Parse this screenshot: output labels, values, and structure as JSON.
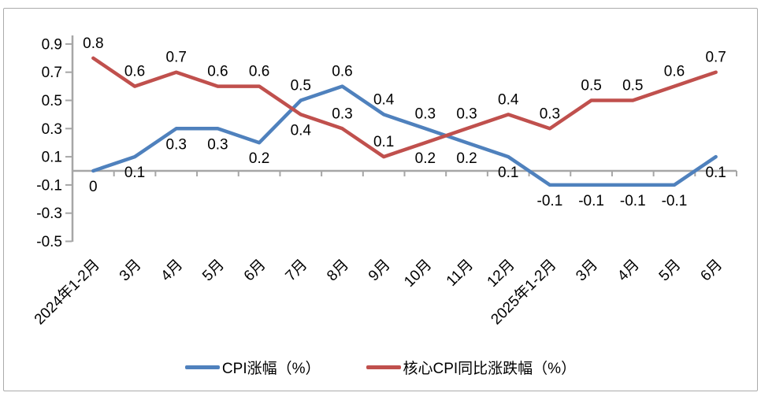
{
  "chart_data": {
    "type": "line",
    "title": "",
    "categories": [
      "2024年1-2月",
      "3月",
      "4月",
      "5月",
      "6月",
      "7月",
      "8月",
      "9月",
      "10月",
      "11月",
      "12月",
      "2025年1-2月",
      "3月",
      "4月",
      "5月",
      "6月"
    ],
    "series": [
      {
        "name": "CPI涨幅（%）",
        "color": "#4F81BD",
        "values": [
          0,
          0.1,
          0.3,
          0.3,
          0.2,
          0.5,
          0.6,
          0.4,
          0.3,
          0.2,
          0.1,
          -0.1,
          -0.1,
          -0.1,
          -0.1,
          0.1
        ],
        "label_side": [
          "below",
          "below",
          "below",
          "below",
          "below",
          "above",
          "above",
          "above",
          "above",
          "below",
          "below",
          "below",
          "below",
          "below",
          "below",
          "below"
        ]
      },
      {
        "name": "核心CPI同比涨跌幅（%）",
        "color": "#C0504D",
        "values": [
          0.8,
          0.6,
          0.7,
          0.6,
          0.6,
          0.4,
          0.3,
          0.1,
          0.2,
          0.3,
          0.4,
          0.3,
          0.5,
          0.5,
          0.6,
          0.7
        ],
        "label_side": [
          "above",
          "above",
          "above",
          "above",
          "above",
          "below",
          "above",
          "above",
          "below",
          "above",
          "above",
          "above",
          "above",
          "above",
          "above",
          "above"
        ]
      }
    ],
    "y_axis": {
      "min": -0.5,
      "max": 0.9,
      "tick_step": 0.2,
      "tick_labels": [
        "0.9",
        "0.7",
        "0.5",
        "0.3",
        "0.1",
        "-0.1",
        "-0.3",
        "-0.5"
      ]
    },
    "x_axis": {
      "label_rotation_deg": -45
    },
    "legend_position": "bottom",
    "grid": false,
    "axis_color": "#a6a6a6",
    "text_color": "#000000"
  }
}
